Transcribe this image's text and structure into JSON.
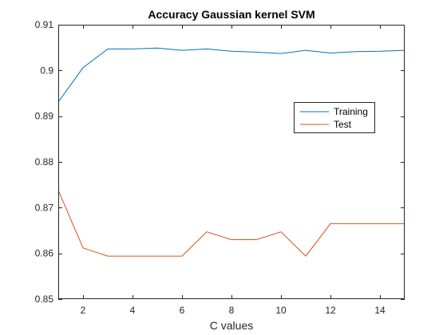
{
  "chart_data": {
    "type": "line",
    "title": "Accuracy Gaussian kernel SVM",
    "xlabel": "C values",
    "ylabel": "",
    "xlim": [
      1,
      15
    ],
    "ylim": [
      0.85,
      0.91
    ],
    "xticks": [
      2,
      4,
      6,
      8,
      10,
      12,
      14
    ],
    "yticks": [
      0.85,
      0.86,
      0.87,
      0.88,
      0.89,
      0.9,
      0.91
    ],
    "ytick_labels": [
      "0.85",
      "0.86",
      "0.87",
      "0.88",
      "0.89",
      "0.9",
      "0.91"
    ],
    "grid": false,
    "legend_position": "right",
    "x": [
      1,
      2,
      3,
      4,
      5,
      6,
      7,
      8,
      9,
      10,
      11,
      12,
      13,
      14,
      15
    ],
    "series": [
      {
        "name": "Training",
        "color": "#0072BD",
        "values": [
          0.8931,
          0.9006,
          0.9047,
          0.9047,
          0.9049,
          0.9044,
          0.9047,
          0.9042,
          0.904,
          0.9037,
          0.9044,
          0.9038,
          0.9041,
          0.9042,
          0.9044
        ]
      },
      {
        "name": "Test",
        "color": "#D95319",
        "values": [
          0.8738,
          0.8612,
          0.8594,
          0.8594,
          0.8594,
          0.8594,
          0.8647,
          0.863,
          0.863,
          0.8647,
          0.8594,
          0.8665,
          0.8665,
          0.8665,
          0.8665
        ]
      }
    ]
  }
}
